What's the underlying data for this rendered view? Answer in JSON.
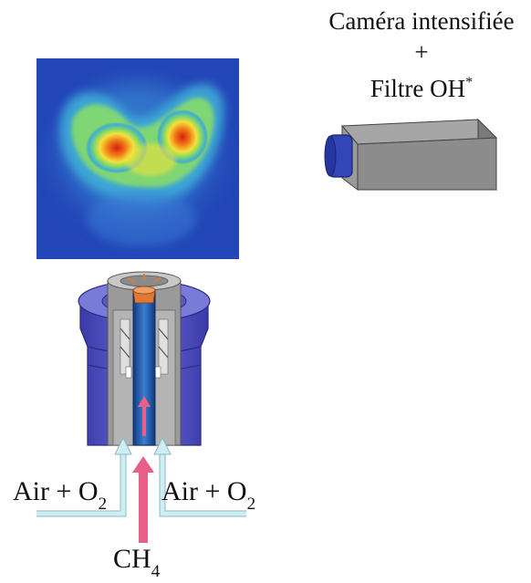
{
  "camera": {
    "line1": "Caméra intensifiée",
    "plus": "+",
    "line3_main": "Filtre OH",
    "line3_sup": "*",
    "body_color": "#8c8c8c",
    "lens_color": "#3346b8"
  },
  "flame_image": {
    "colormap": "jet",
    "background_color": "#2347b8"
  },
  "burner": {
    "outer_color": "#5656c8",
    "inner_color": "#9a9a9a",
    "tube_color": "#2255aa",
    "tip_color": "#e07a30"
  },
  "inlets": {
    "left_label_main": "Air + O",
    "left_label_sub": "2",
    "right_label_main": "Air + O",
    "right_label_sub": "2",
    "fuel_main": "CH",
    "fuel_sub": "4",
    "air_color": "#cdeef2",
    "fuel_color": "#e8608a"
  }
}
